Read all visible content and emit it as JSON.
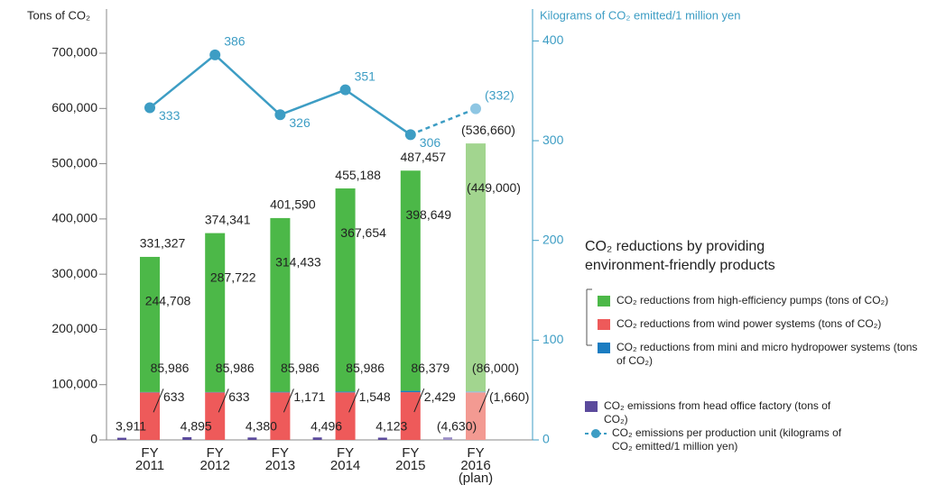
{
  "chart_data": {
    "type": "bar",
    "y_label": "Tons of CO₂",
    "y2_label": "Kilograms of CO₂ emitted/1 million yen",
    "legend_title": "CO₂ reductions by providing environment-friendly products",
    "categories": [
      "FY 2011",
      "FY 2012",
      "FY 2013",
      "FY 2014",
      "FY 2015",
      "FY 2016 (plan)"
    ],
    "ylim": [
      0,
      780000
    ],
    "yticks": [
      0,
      {
        "value": 100000,
        "label": "100,000"
      },
      {
        "value": 200000,
        "label": "200,000"
      },
      {
        "value": 300000,
        "label": "300,000"
      },
      {
        "value": 400000,
        "label": "400,000"
      },
      {
        "value": 500000,
        "label": "500,000"
      },
      {
        "value": 600000,
        "label": "600,000"
      },
      {
        "value": 700000,
        "label": "700,000"
      }
    ],
    "y2lim": [
      0,
      432
    ],
    "y2ticks": [
      0,
      100,
      200,
      300,
      400
    ],
    "series": [
      {
        "name": "CO₂ reductions from high-efficiency pumps (tons of CO₂)",
        "color": "#4cb848",
        "plan_color": "#a2d58f",
        "stacked": true,
        "values": [
          244708,
          287722,
          314433,
          367654,
          398649,
          449000
        ],
        "value_labels": [
          "244,708",
          "287,722",
          "314,433",
          "367,654",
          "398,649",
          "(449,000)"
        ]
      },
      {
        "name": "CO₂ reductions from wind power systems (tons of CO₂)",
        "color": "#ee5a5a",
        "plan_color": "#f39a92",
        "stacked": true,
        "values": [
          85986,
          85986,
          85986,
          85986,
          86379,
          86000
        ],
        "value_labels": [
          "85,986",
          "85,986",
          "85,986",
          "85,986",
          "86,379",
          "(86,000)"
        ]
      },
      {
        "name": "CO₂ reductions from mini and micro hydropower systems (tons of CO₂)",
        "color": "#1a7cc1",
        "plan_color": "#7fb6dd",
        "stacked": true,
        "values": [
          633,
          633,
          1171,
          1548,
          2429,
          1660
        ],
        "value_labels": [
          "633",
          "633",
          "1,171",
          "1,548",
          "2,429",
          "(1,660)"
        ]
      },
      {
        "name": "CO₂ emissions from head office factory (tons of CO₂)",
        "color": "#5b4a9c",
        "plan_color": "#9b8fc6",
        "stacked": false,
        "values": [
          3911,
          4895,
          4380,
          4496,
          4123,
          4630
        ],
        "value_labels": [
          "3,911",
          "4,895",
          "4,380",
          "4,496",
          "4,123",
          "(4,630)"
        ]
      },
      {
        "name": "CO₂ emissions per production unit (kilograms of CO₂ emitted/1 million yen)",
        "type": "line",
        "axis": "y2",
        "color": "#3d9dc4",
        "plan_color": "#8ec6e3",
        "values": [
          333,
          386,
          326,
          351,
          306,
          332
        ],
        "value_labels": [
          "333",
          "386",
          "326",
          "351",
          "306",
          "(332)"
        ]
      }
    ],
    "totals": {
      "values": [
        331327,
        374341,
        401590,
        455188,
        487457,
        536660
      ],
      "value_labels": [
        "331,327",
        "374,341",
        "401,590",
        "455,188",
        "487,457",
        "(536,660)"
      ]
    }
  }
}
